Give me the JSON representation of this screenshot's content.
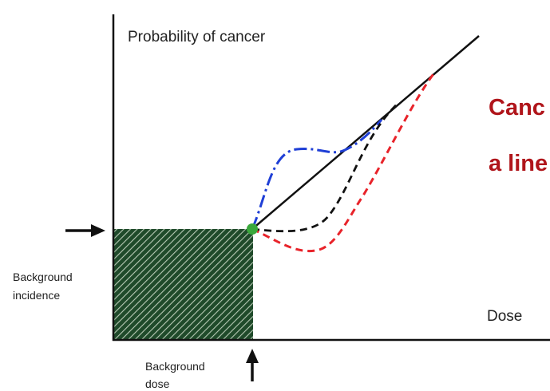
{
  "labels": {
    "y_axis": "Probability of cancer",
    "x_axis": "Dose",
    "background_incidence_line1": "Background",
    "background_incidence_line2": "incidence",
    "background_dose_line1": "Background",
    "background_dose_line2": "dose",
    "headline_line1": "Canc",
    "headline_line2": "a line"
  },
  "colors": {
    "axis": "#111111",
    "linear_curve": "#111111",
    "blue_curve": "#1f3fd6",
    "black_dashed_curve": "#111111",
    "red_curve": "#e8232a",
    "background_fill": "#1f4a2a",
    "background_hatch": "#b7c9b5",
    "point": "#3aa83c",
    "headline": "#b0151b"
  },
  "icons": {
    "incidence_arrow": "arrow-right-icon",
    "dose_arrow": "arrow-up-icon"
  }
}
